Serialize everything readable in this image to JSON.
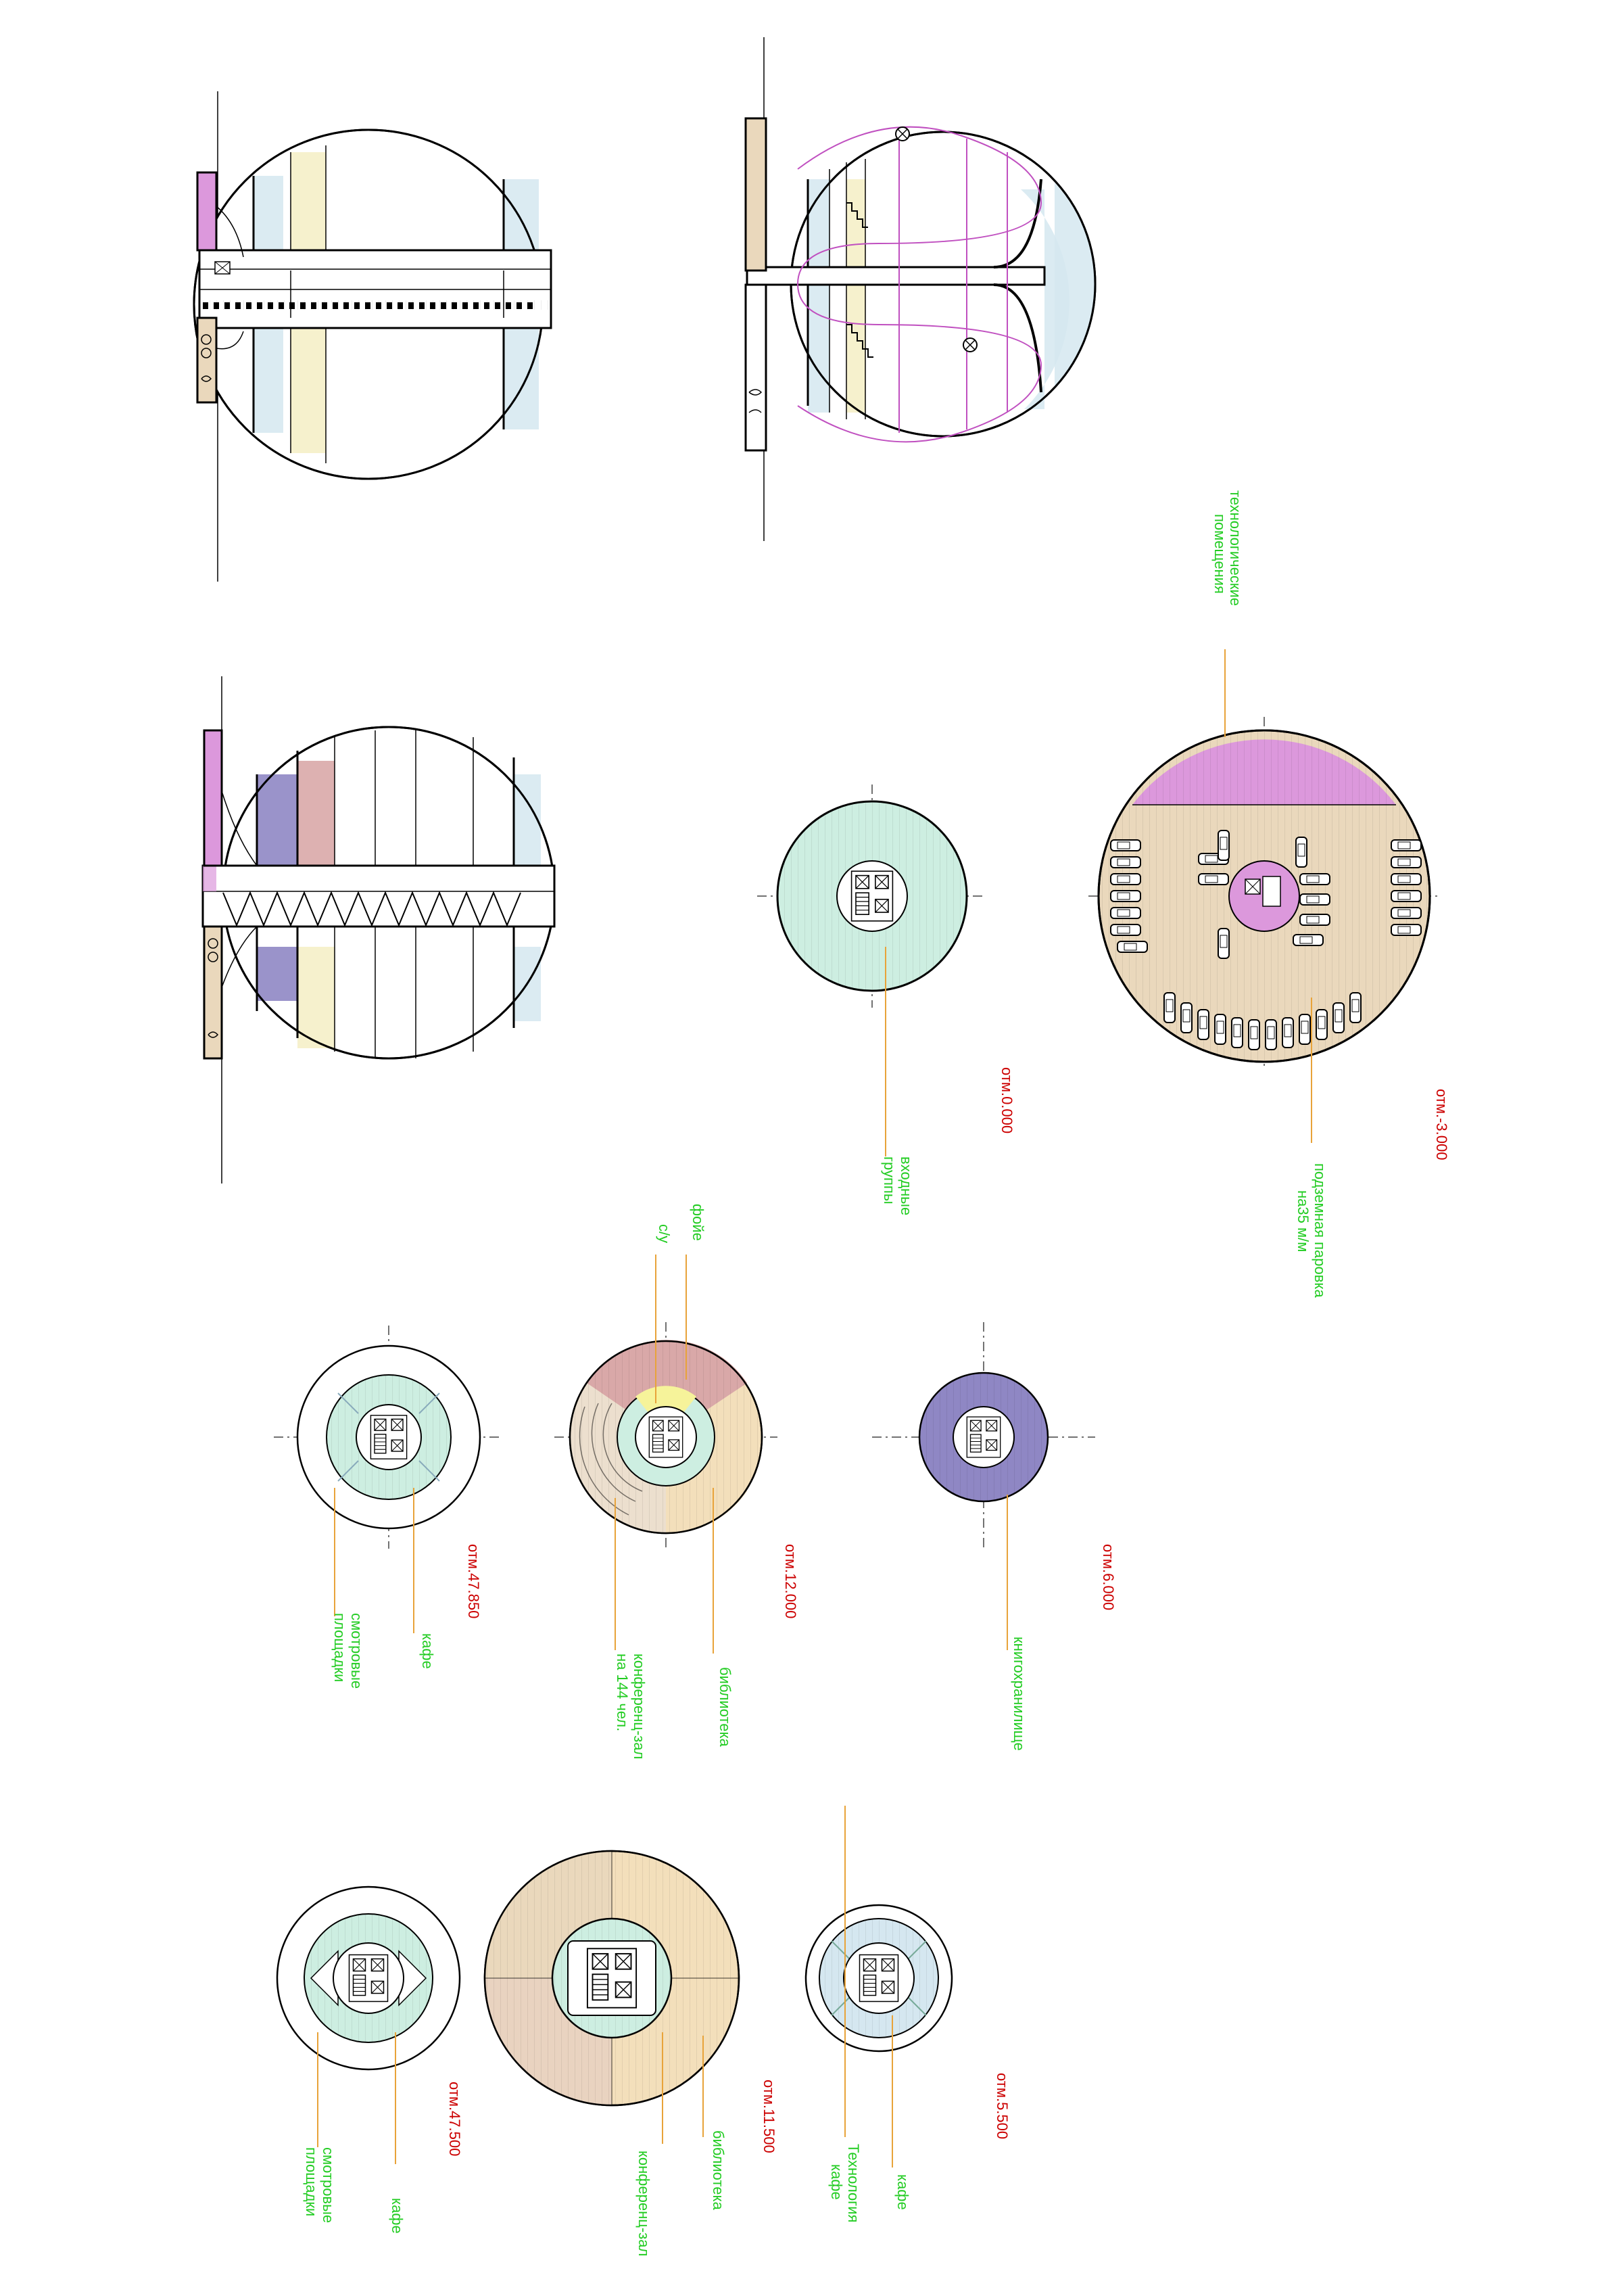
{
  "colors": {
    "label_green": "#22cc22",
    "elevation_red": "#cc0000",
    "leader_orange": "#e8a33a",
    "teal": "#cdeee1",
    "light_blue": "#d5e7f0",
    "beige": "#f3dfbb",
    "tan": "#ead8bc",
    "rose": "#d9a8a8",
    "violet": "#8f87c4",
    "magenta": "#dc98dc",
    "yellow": "#f6f39a",
    "pale_yellow": "#f5efc8",
    "coil_magenta": "#c050c0"
  },
  "icons": [
    "elevator-icon",
    "stair-icon",
    "car-icon",
    "circle-x-icon"
  ],
  "plans": {
    "p0": {
      "elevation": "отм.0.000",
      "labels": [
        "входные",
        "группы"
      ]
    },
    "pm3": {
      "elevation": "отм.-3.000",
      "tech_label": [
        "технологические",
        "помещения"
      ],
      "parking_label": [
        "подземная паровка",
        "на35 м/м"
      ]
    },
    "p6": {
      "elevation": "отм.6.000",
      "label": "книгохранилище"
    },
    "p12": {
      "elevation": "отм.12.000",
      "foyer": "фойе",
      "wc": "с/у",
      "library": "библиотека",
      "conf": [
        "конференц-зал",
        "на 144 чел."
      ]
    },
    "p4785": {
      "elevation": "отм.47.850",
      "cafe": "кафе",
      "obs": [
        "смотровые",
        "площадки"
      ]
    },
    "p550": {
      "elevation": "отм.5.500",
      "cafe": "кафе",
      "tech": [
        "Технология",
        "кафе"
      ]
    },
    "p1150": {
      "elevation": "отм.11.500",
      "library": "библиотека",
      "conf": "конференц-зал"
    },
    "p4750": {
      "elevation": "отм.47.500",
      "cafe": "кафе",
      "obs": [
        "смотровые",
        "площадки"
      ]
    }
  }
}
